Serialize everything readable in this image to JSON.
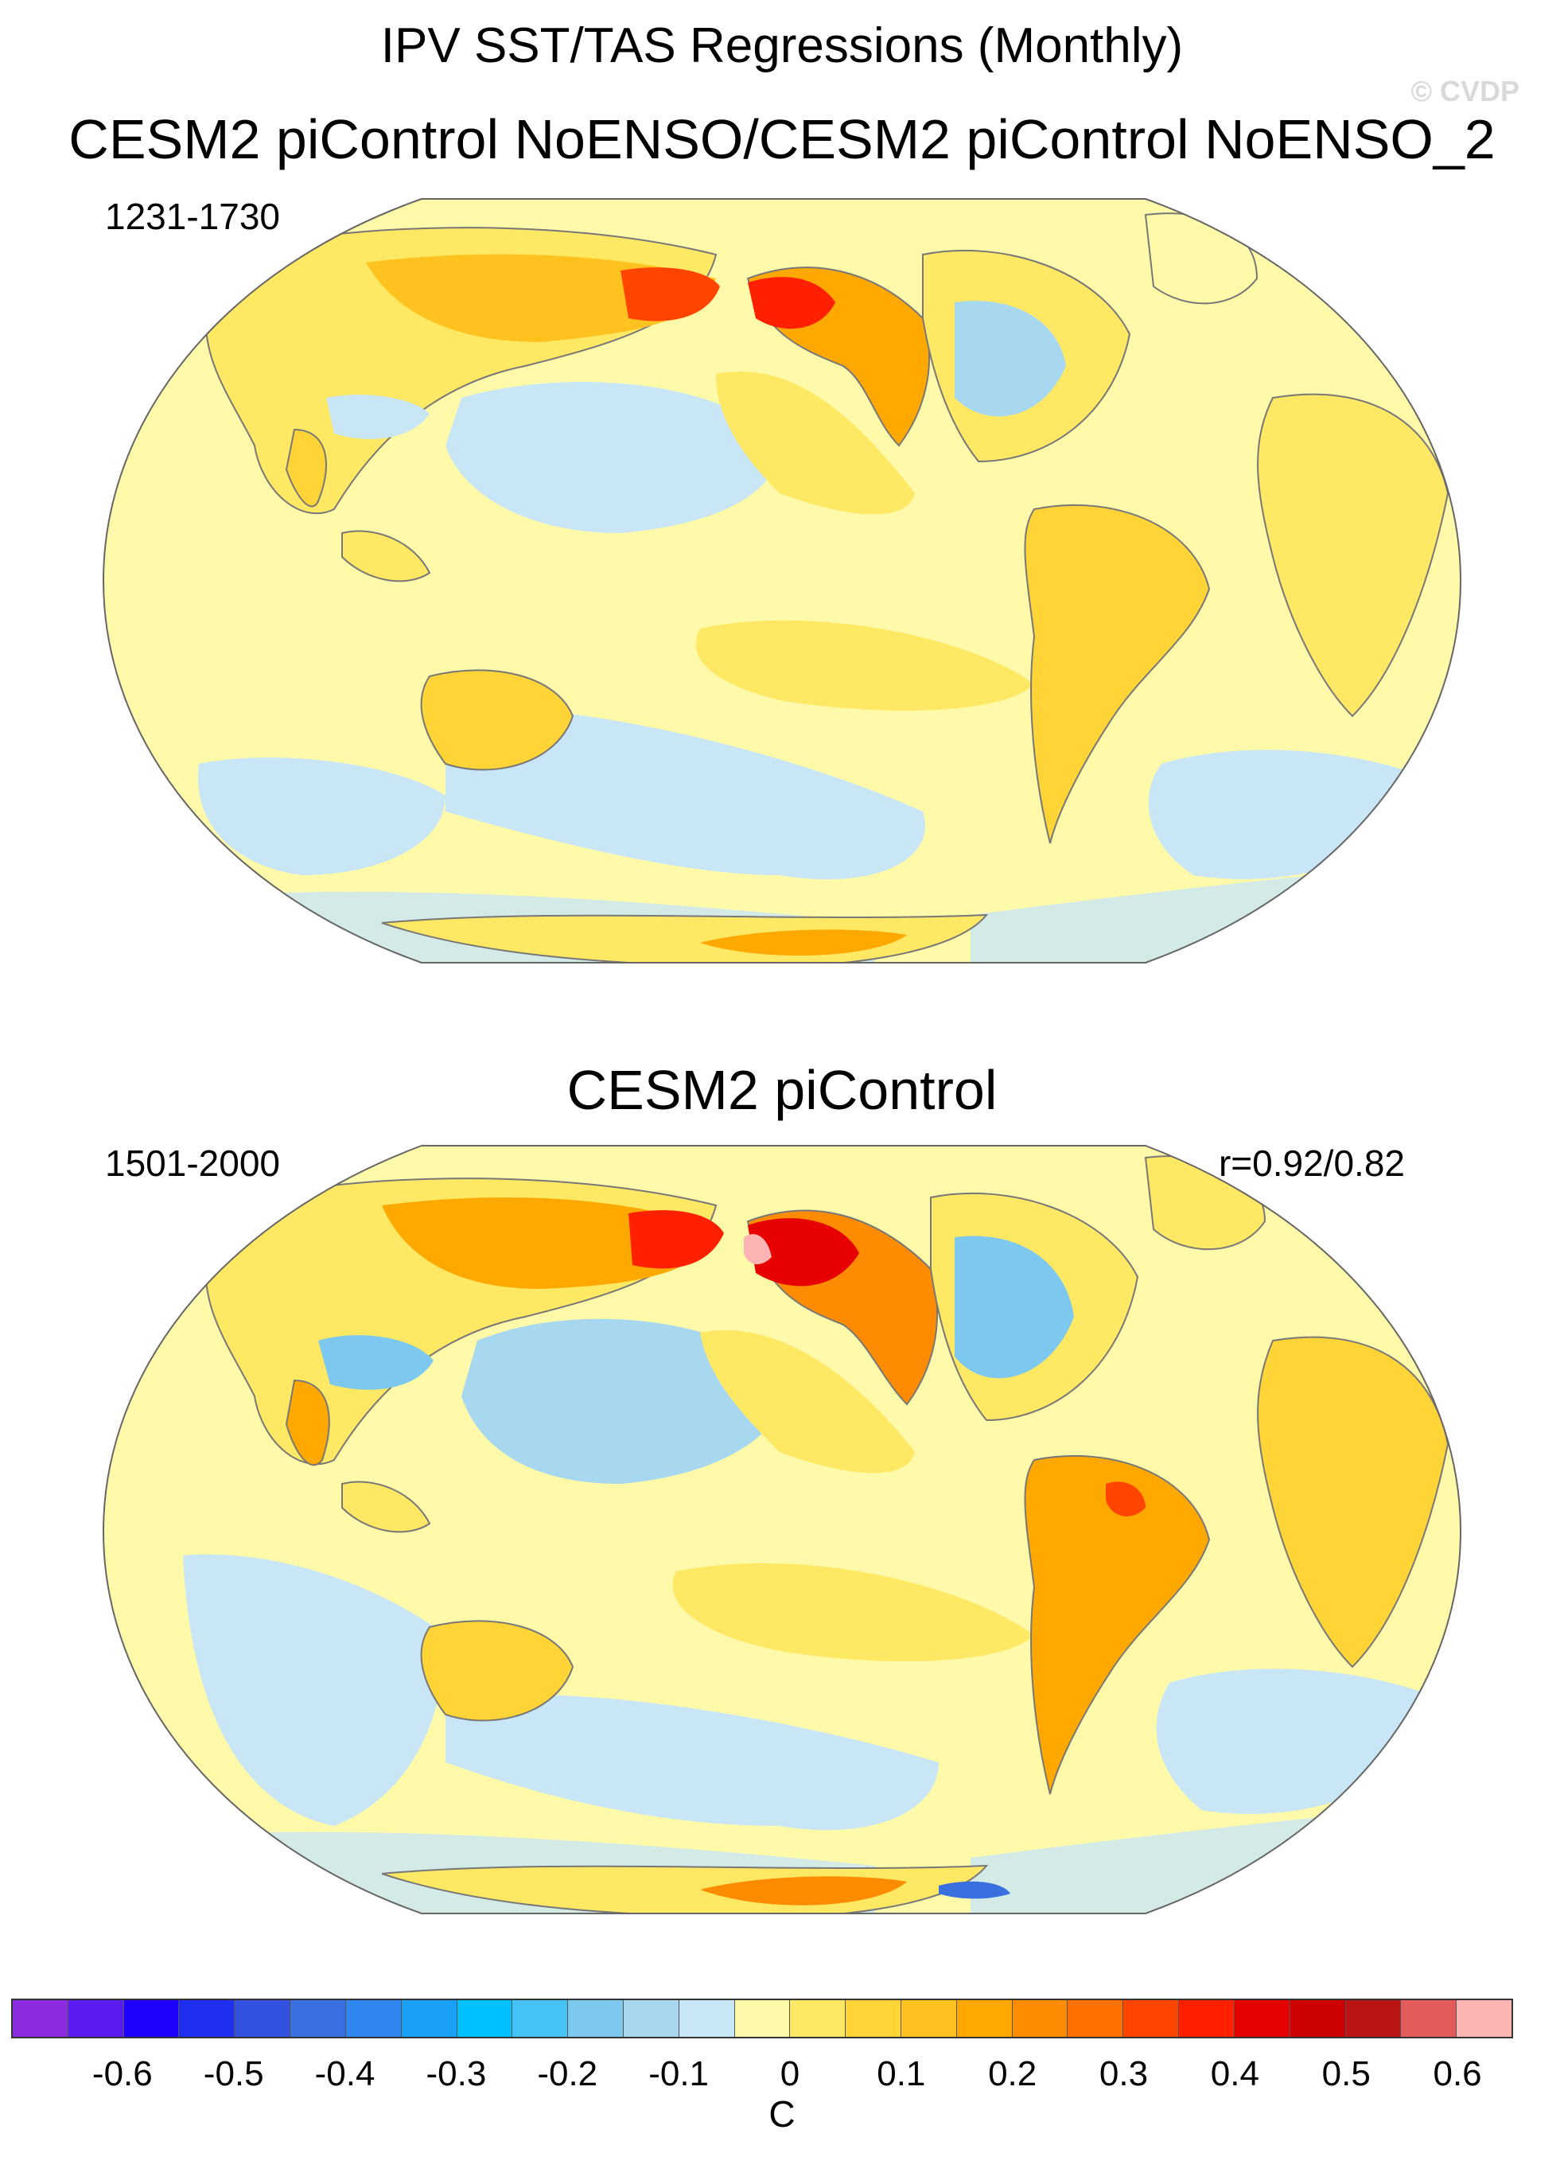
{
  "title": "IPV SST/TAS Regressions (Monthly)",
  "watermark": "© CVDP",
  "panels": [
    {
      "title": "CESM2 piControl NoENSO/CESM2 piControl NoENSO_2",
      "period": "1231-1730",
      "correlation": ""
    },
    {
      "title": "CESM2 piControl",
      "period": "1501-2000",
      "correlation": "r=0.92/0.82"
    }
  ],
  "colorbar": {
    "units": "C",
    "colors": [
      "#8a2be2",
      "#5a1cf0",
      "#1e00ff",
      "#1f2ff0",
      "#3352e0",
      "#3a6fe0",
      "#2f86ee",
      "#1aa0f5",
      "#00c0ff",
      "#46c3f5",
      "#7cc8ee",
      "#a7d8f0",
      "#c8e6f5",
      "#fffaaa",
      "#ffe864",
      "#ffd436",
      "#ffc21e",
      "#ffa800",
      "#ff8c00",
      "#ff7000",
      "#ff4500",
      "#ff2000",
      "#e60000",
      "#cc0000",
      "#bb1414",
      "#e35a5a",
      "#ffb4b4"
    ],
    "tick_labels": [
      "-0.6",
      "-0.5",
      "-0.4",
      "-0.3",
      "-0.2",
      "-0.1",
      "0",
      "0.1",
      "0.2",
      "0.3",
      "0.4",
      "0.5",
      "0.6"
    ]
  },
  "colors": {
    "land_outline": "#777777",
    "ocean_base": "#fffaaa",
    "negative": "#c8e6f5",
    "warm": "#ffd436",
    "strong_warm": "#ff2000"
  }
}
